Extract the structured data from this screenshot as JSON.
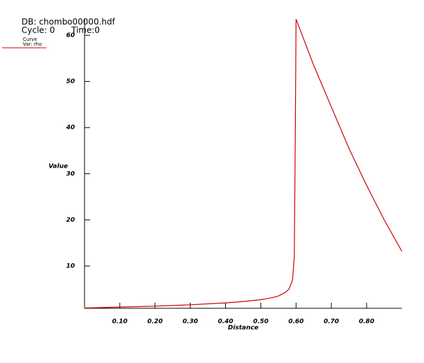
{
  "chart_data": {
    "type": "line",
    "title": "DB: chombo00000.hdf",
    "cycle": "Cycle: 0",
    "time": "Time:0",
    "xlabel": "Distance",
    "ylabel": "Value",
    "x": [
      0,
      0.1,
      0.2,
      0.3,
      0.4,
      0.45,
      0.5,
      0.53,
      0.55,
      0.57,
      0.58,
      0.59,
      0.595,
      0.598,
      0.6,
      0.65,
      0.7,
      0.75,
      0.8,
      0.85,
      0.9
    ],
    "series": [
      {
        "name": "Curve",
        "var": "Var: rho",
        "color": "#cc0000",
        "values": [
          0.9,
          1.1,
          1.3,
          1.6,
          2.0,
          2.3,
          2.7,
          3.1,
          3.5,
          4.3,
          5.0,
          7.0,
          12,
          40,
          63.5,
          53.5,
          44.5,
          35.5,
          27.5,
          20,
          13.2
        ]
      }
    ],
    "xlim": [
      0,
      0.9
    ],
    "ylim": [
      0.84,
      63.6
    ],
    "xticks": [
      {
        "value": 0.1,
        "label": "0.10"
      },
      {
        "value": 0.2,
        "label": "0.20"
      },
      {
        "value": 0.3,
        "label": "0.30"
      },
      {
        "value": 0.4,
        "label": "0.40"
      },
      {
        "value": 0.5,
        "label": "0.50"
      },
      {
        "value": 0.6,
        "label": "0.60"
      },
      {
        "value": 0.7,
        "label": "0.70"
      },
      {
        "value": 0.8,
        "label": "0.80"
      }
    ],
    "yticks": [
      10,
      20,
      30,
      40,
      50,
      60
    ]
  }
}
